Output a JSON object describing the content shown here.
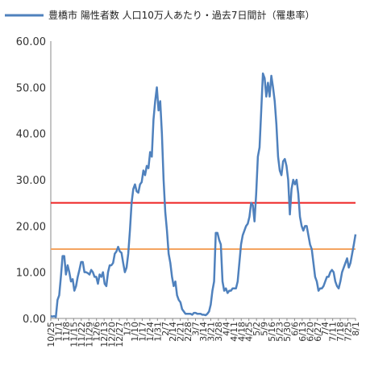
{
  "chart_data": {
    "type": "line",
    "title": "",
    "xlabel": "",
    "ylabel": "",
    "legend_position": "top",
    "grid": "none",
    "ylim": [
      0,
      60
    ],
    "yticks": [
      "0.00",
      "10.00",
      "20.00",
      "30.00",
      "40.00",
      "50.00",
      "60.00"
    ],
    "xticks": [
      "10/25",
      "11/1",
      "11/8",
      "11/15",
      "11/22",
      "11/29",
      "12/6",
      "12/13",
      "12/20",
      "12/27",
      "1/3",
      "1/10",
      "1/17",
      "1/24",
      "1/31",
      "2/7",
      "2/14",
      "2/21",
      "2/28",
      "3/7",
      "3/14",
      "3/21",
      "3/28",
      "4/4",
      "4/11",
      "4/18",
      "4/25",
      "5/2",
      "5/9",
      "5/16",
      "5/23",
      "5/30",
      "6/6",
      "6/13",
      "6/20",
      "6/27",
      "7/4",
      "7/11",
      "7/18",
      "7/25",
      "8/1"
    ],
    "series": [
      {
        "name": "豊橋市 陽性者数 人口10万人あたり・過去7日間計（罹患率）",
        "color": "#4f81bd",
        "values": [
          0.5,
          0.4,
          0.5,
          0.3,
          4,
          5,
          9,
          13.5,
          13.5,
          9.5,
          11.5,
          10,
          8,
          8.5,
          6,
          7,
          9,
          10.5,
          12.2,
          12.2,
          10,
          10,
          9.8,
          9.5,
          10.5,
          10,
          9,
          9,
          7.5,
          9.5,
          9,
          10,
          7.5,
          7,
          10,
          11.5,
          11.5,
          12,
          14,
          14.5,
          15.5,
          14.5,
          14.2,
          12,
          10,
          11,
          14,
          19,
          25,
          28,
          29,
          27.5,
          27.2,
          29,
          29.5,
          32,
          31,
          33,
          32.5,
          36,
          35,
          43,
          47,
          50,
          45,
          47,
          40,
          30,
          23,
          19,
          14,
          12,
          9,
          7,
          8,
          5,
          4,
          3.5,
          2,
          1.5,
          1,
          1,
          1,
          1,
          0.8,
          1.2,
          1.2,
          1,
          1,
          1,
          0.8,
          0.8,
          0.7,
          1,
          1.5,
          3,
          6,
          8,
          18.5,
          18.5,
          17,
          16,
          8,
          6,
          6.5,
          5.5,
          6,
          6,
          6.5,
          6.5,
          6.5,
          8,
          12,
          16,
          18,
          19,
          20,
          20.5,
          22,
          25,
          24.5,
          21,
          27,
          35,
          37,
          45,
          53,
          52,
          48,
          51,
          48,
          52.5,
          50,
          47,
          42,
          35,
          32,
          31,
          34,
          34.5,
          33,
          30,
          22.5,
          28,
          30,
          29,
          30,
          27,
          22,
          20,
          19,
          20,
          20,
          18,
          16,
          15,
          12,
          9,
          8,
          6,
          6.5,
          6.5,
          7,
          8,
          9,
          9,
          10,
          10.5,
          10,
          8,
          7,
          6.5,
          8,
          10,
          11,
          12,
          13,
          11,
          12,
          14,
          16,
          18.2
        ]
      }
    ],
    "reference_lines": [
      {
        "value": 25,
        "color": "#ee2222"
      },
      {
        "value": 15,
        "color": "#f4a460"
      }
    ]
  }
}
